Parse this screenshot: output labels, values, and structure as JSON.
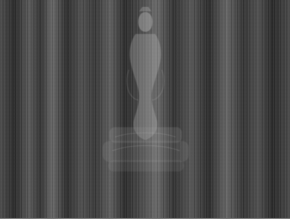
{
  "image": {
    "subject": "",
    "caption": ""
  },
  "colors": {
    "background": "#ffffff",
    "photo_base": "#3a3a3a",
    "figure_tint": "#d9d9d9",
    "rule": "#111111"
  },
  "icons": {
    "figure": "statue-figure-icon"
  }
}
